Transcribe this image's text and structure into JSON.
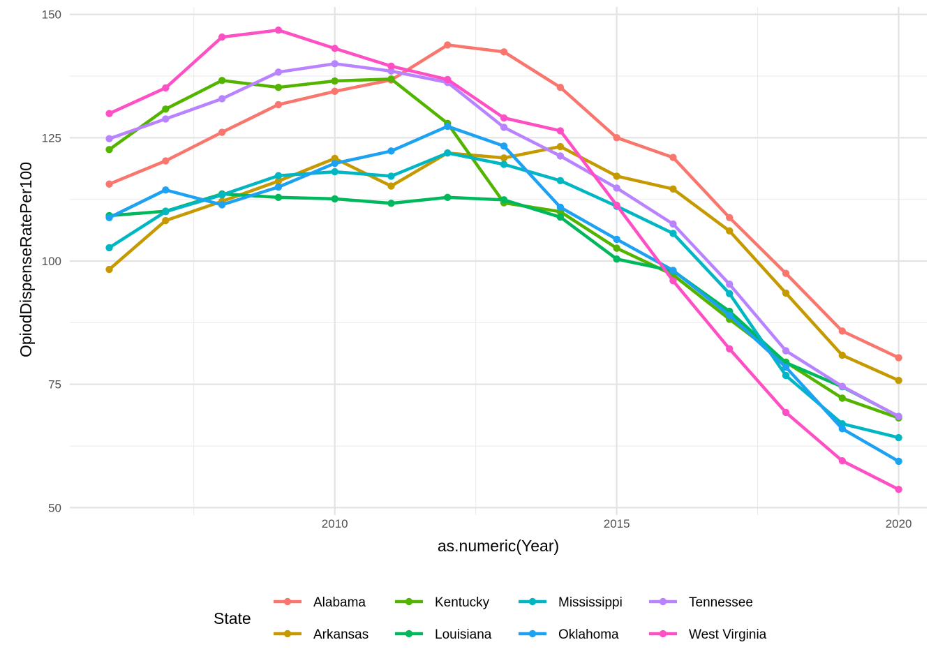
{
  "chart_data": {
    "type": "line",
    "xlabel": "as.numeric(Year)",
    "ylabel": "OpiodDispenseRatePer100",
    "xlim": [
      2005.3,
      2020.5
    ],
    "ylim": [
      48.5,
      151.5
    ],
    "x_ticks": [
      2010,
      2015,
      2020
    ],
    "y_ticks": [
      50,
      75,
      100,
      125,
      150
    ],
    "x_minor_ticks": [
      2007.5,
      2012.5,
      2017.5
    ],
    "y_minor_ticks": [
      62.5,
      87.5,
      112.5,
      137.5
    ],
    "grid": true,
    "legend": {
      "title": "State",
      "position": "bottom",
      "columns": 4
    },
    "x": [
      2006,
      2007,
      2008,
      2009,
      2010,
      2011,
      2012,
      2013,
      2014,
      2015,
      2016,
      2017,
      2018,
      2019,
      2020
    ],
    "series": [
      {
        "name": "Alabama",
        "color": "#F8766D",
        "values": [
          115.6,
          120.3,
          126.1,
          131.7,
          134.4,
          136.7,
          143.8,
          142.4,
          135.2,
          125.0,
          121.0,
          108.8,
          97.5,
          85.8,
          80.4
        ]
      },
      {
        "name": "Arkansas",
        "color": "#C49A00",
        "values": [
          98.3,
          108.2,
          112.1,
          116.2,
          120.8,
          115.2,
          121.9,
          120.9,
          123.2,
          117.2,
          114.6,
          106.1,
          93.5,
          80.9,
          75.8
        ]
      },
      {
        "name": "Kentucky",
        "color": "#53B400",
        "values": [
          122.6,
          130.8,
          136.6,
          135.2,
          136.5,
          136.9,
          127.9,
          111.8,
          110.0,
          102.6,
          97.2,
          88.2,
          79.5,
          72.2,
          68.2
        ]
      },
      {
        "name": "Louisiana",
        "color": "#00B85C",
        "values": [
          109.2,
          110.1,
          113.6,
          112.9,
          112.6,
          111.7,
          112.9,
          112.4,
          108.9,
          100.4,
          98.0,
          89.8,
          79.4,
          74.5,
          68.5
        ]
      },
      {
        "name": "Mississippi",
        "color": "#00B6C3",
        "values": [
          102.7,
          110.0,
          113.4,
          117.3,
          118.1,
          117.2,
          121.9,
          119.6,
          116.3,
          111.1,
          105.6,
          93.4,
          76.8,
          67.0,
          64.2
        ]
      },
      {
        "name": "Oklahoma",
        "color": "#1DA1F2",
        "values": [
          108.8,
          114.4,
          111.4,
          115.0,
          119.8,
          122.3,
          127.3,
          123.3,
          110.9,
          104.4,
          98.1,
          89.0,
          78.5,
          66.0,
          59.4
        ]
      },
      {
        "name": "Tennessee",
        "color": "#B983FF",
        "values": [
          124.8,
          128.8,
          132.9,
          138.3,
          140.0,
          138.5,
          136.2,
          127.1,
          121.3,
          114.8,
          107.5,
          95.3,
          81.8,
          74.6,
          68.5
        ]
      },
      {
        "name": "West Virginia",
        "color": "#FF4FC4",
        "values": [
          129.9,
          135.1,
          145.4,
          146.8,
          143.1,
          139.5,
          136.8,
          129.0,
          126.4,
          111.3,
          96.0,
          82.2,
          69.3,
          59.5,
          53.7
        ]
      }
    ]
  }
}
